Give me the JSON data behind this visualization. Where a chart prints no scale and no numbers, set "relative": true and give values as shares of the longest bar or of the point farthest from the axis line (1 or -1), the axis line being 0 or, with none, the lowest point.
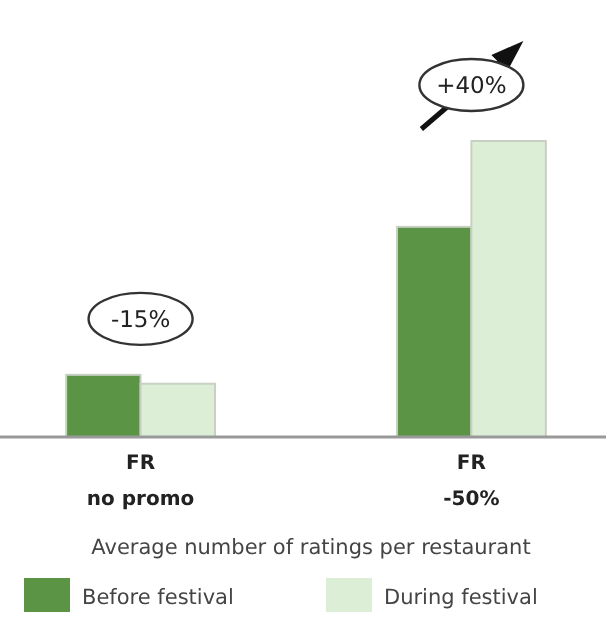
{
  "chart_data": {
    "type": "bar",
    "relative": true,
    "categories": [
      "FR\nno promo",
      "FR\n-50%"
    ],
    "xlabel": "Average number of ratings per restaurant",
    "series": [
      {
        "name": "Before festival",
        "color": "#5a9444",
        "values": [
          0.21,
          0.71
        ]
      },
      {
        "name": "During festival",
        "color": "#dcefd6",
        "values": [
          0.18,
          1
        ]
      }
    ],
    "annotations": [
      "-15%",
      "+40%"
    ],
    "legend": "bottom"
  }
}
